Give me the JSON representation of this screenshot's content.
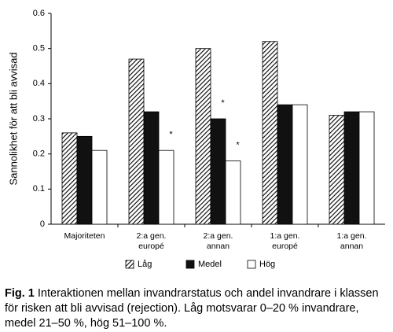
{
  "chart_data": {
    "type": "bar",
    "y_label": "Sannolikhet för att bli avvisad",
    "categories": [
      [
        "Majoriteten"
      ],
      [
        "2:a gen.",
        "europé"
      ],
      [
        "2:a gen.",
        "annan"
      ],
      [
        "1:a gen.",
        "europé"
      ],
      [
        "1:a gen.",
        "annan"
      ]
    ],
    "series": [
      {
        "name": "Låg",
        "color": "hatch",
        "values": [
          0.26,
          0.47,
          0.5,
          0.52,
          0.31
        ],
        "significance": [
          null,
          null,
          null,
          null,
          null
        ]
      },
      {
        "name": "Medel",
        "color": "#111111",
        "values": [
          0.25,
          0.32,
          0.3,
          0.34,
          0.32
        ],
        "significance": [
          null,
          null,
          "*",
          null,
          null
        ]
      },
      {
        "name": "Hög",
        "color": "#ffffff",
        "values": [
          0.21,
          0.21,
          0.18,
          0.34,
          0.32
        ],
        "significance": [
          null,
          "*",
          "*",
          null,
          null
        ]
      }
    ],
    "ylim": [
      0,
      0.6
    ],
    "yticks": [
      0,
      0.1,
      0.2,
      0.3,
      0.4,
      0.5,
      0.6
    ],
    "grid": false,
    "legend": "bottom"
  },
  "caption": {
    "label": "Fig. 1",
    "text": "Interaktionen mellan invandrarstatus och andel invandrare i klassen för risken att bli avvisad (rejection). Låg motsvarar 0–20 % invandrare, medel 21–50 %, hög 51–100 %."
  }
}
